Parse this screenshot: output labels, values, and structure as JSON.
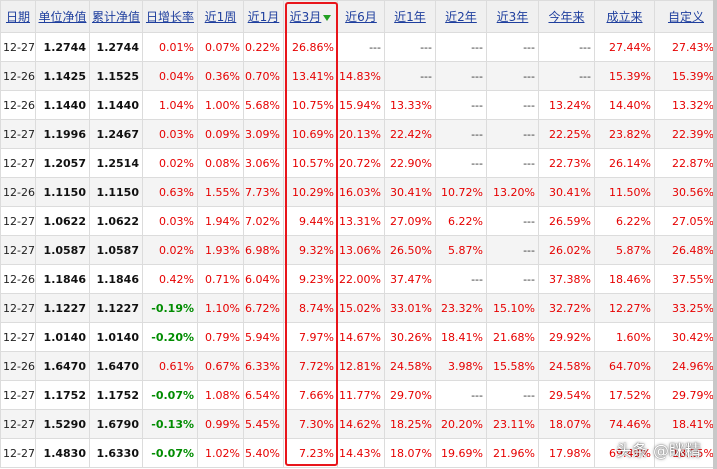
{
  "colors": {
    "up": "#e60000",
    "down": "#008c00",
    "header_link": "#1f3f9e",
    "highlight": "#e8151b",
    "sort_arrow": "#22a022"
  },
  "sort_icon": "arrow-down-icon",
  "headers": [
    "日期",
    "单位净值",
    "累计净值",
    "日增长率",
    "近1周",
    "近1月",
    "近3月",
    "近6月",
    "近1年",
    "近2年",
    "近3年",
    "今年来",
    "成立来",
    "自定义"
  ],
  "sorted_column": 6,
  "rows": [
    [
      "12-27",
      "1.2744",
      "1.2744",
      "0.01%",
      "0.07%",
      "0.22%",
      "26.86%",
      "---",
      "---",
      "---",
      "---",
      "---",
      "27.44%",
      "27.43%"
    ],
    [
      "12-26",
      "1.1425",
      "1.1525",
      "0.04%",
      "0.36%",
      "0.70%",
      "13.41%",
      "14.83%",
      "---",
      "---",
      "---",
      "---",
      "15.39%",
      "15.39%"
    ],
    [
      "12-26",
      "1.1440",
      "1.1440",
      "1.04%",
      "1.00%",
      "5.68%",
      "10.75%",
      "15.94%",
      "13.33%",
      "---",
      "---",
      "13.24%",
      "14.40%",
      "13.32%"
    ],
    [
      "12-27",
      "1.1996",
      "1.2467",
      "0.03%",
      "0.09%",
      "3.09%",
      "10.69%",
      "20.13%",
      "22.42%",
      "---",
      "---",
      "22.25%",
      "23.82%",
      "22.39%"
    ],
    [
      "12-27",
      "1.2057",
      "1.2514",
      "0.02%",
      "0.08%",
      "3.06%",
      "10.57%",
      "20.72%",
      "22.90%",
      "---",
      "---",
      "22.73%",
      "26.14%",
      "22.87%"
    ],
    [
      "12-26",
      "1.1150",
      "1.1150",
      "0.63%",
      "1.55%",
      "7.73%",
      "10.29%",
      "16.03%",
      "30.41%",
      "10.72%",
      "13.20%",
      "30.41%",
      "11.50%",
      "30.56%"
    ],
    [
      "12-27",
      "1.0622",
      "1.0622",
      "0.03%",
      "1.94%",
      "7.02%",
      "9.44%",
      "13.31%",
      "27.09%",
      "6.22%",
      "---",
      "26.59%",
      "6.22%",
      "27.05%"
    ],
    [
      "12-27",
      "1.0587",
      "1.0587",
      "0.02%",
      "1.93%",
      "6.98%",
      "9.32%",
      "13.06%",
      "26.50%",
      "5.87%",
      "---",
      "26.02%",
      "5.87%",
      "26.48%"
    ],
    [
      "12-26",
      "1.1846",
      "1.1846",
      "0.42%",
      "0.71%",
      "6.04%",
      "9.23%",
      "22.00%",
      "37.47%",
      "---",
      "---",
      "37.38%",
      "18.46%",
      "37.55%"
    ],
    [
      "12-27",
      "1.1227",
      "1.1227",
      "-0.19%",
      "1.10%",
      "6.72%",
      "8.74%",
      "15.02%",
      "33.01%",
      "23.32%",
      "15.10%",
      "32.72%",
      "12.27%",
      "33.25%"
    ],
    [
      "12-27",
      "1.0140",
      "1.0140",
      "-0.20%",
      "0.79%",
      "5.94%",
      "7.97%",
      "14.67%",
      "30.26%",
      "18.41%",
      "21.68%",
      "29.92%",
      "1.60%",
      "30.42%"
    ],
    [
      "12-26",
      "1.6470",
      "1.6470",
      "0.61%",
      "0.67%",
      "6.33%",
      "7.72%",
      "12.81%",
      "24.58%",
      "3.98%",
      "15.58%",
      "24.58%",
      "64.70%",
      "24.96%"
    ],
    [
      "12-27",
      "1.1752",
      "1.1752",
      "-0.07%",
      "1.08%",
      "6.54%",
      "7.66%",
      "11.77%",
      "29.70%",
      "---",
      "---",
      "29.54%",
      "17.52%",
      "29.79%"
    ],
    [
      "12-27",
      "1.5290",
      "1.6790",
      "-0.13%",
      "0.99%",
      "5.45%",
      "7.30%",
      "14.62%",
      "18.25%",
      "20.20%",
      "23.11%",
      "18.07%",
      "74.46%",
      "18.41%"
    ],
    [
      "12-27",
      "1.4830",
      "1.6330",
      "-0.07%",
      "1.02%",
      "5.40%",
      "7.23%",
      "14.43%",
      "18.07%",
      "19.69%",
      "21.96%",
      "17.98%",
      "69.49%",
      "18.15%"
    ]
  ],
  "watermark": "头条 @眯精"
}
